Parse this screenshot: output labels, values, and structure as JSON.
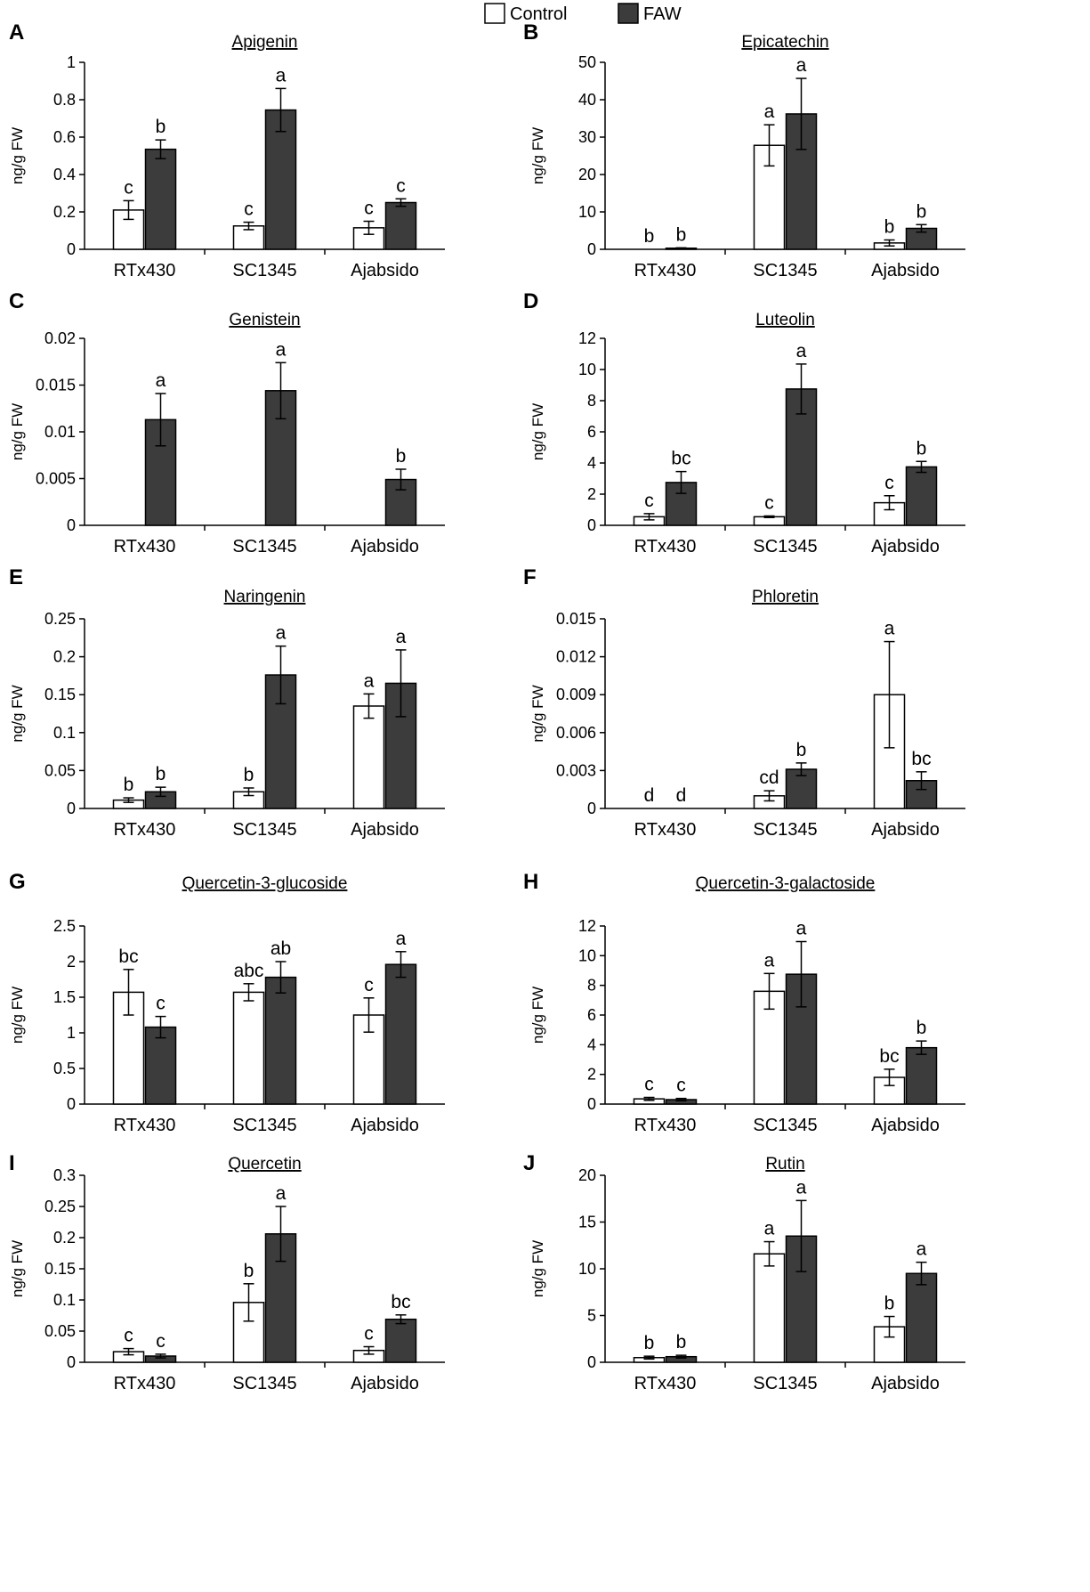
{
  "legend": {
    "control": {
      "label": "Control",
      "color": "#ffffff"
    },
    "faw": {
      "label": "FAW",
      "color": "#3c3c3c"
    }
  },
  "chart_data": [
    {
      "type": "bar",
      "panel": "A",
      "title": "Apigenin",
      "ylabel": "ng/g FW",
      "categories": [
        "RTx430",
        "SC1345",
        "Ajabsido"
      ],
      "ylim": [
        0,
        1
      ],
      "yticks": [
        0,
        0.2,
        0.4,
        0.6,
        0.8,
        1
      ],
      "yticklabels": [
        "0",
        "0.2",
        "0.4",
        "0.6",
        "0.8",
        "1"
      ],
      "series": [
        {
          "name": "Control",
          "values": [
            0.21,
            0.125,
            0.115
          ],
          "errors": [
            0.05,
            0.02,
            0.035
          ],
          "labels": [
            "c",
            "c",
            "c"
          ]
        },
        {
          "name": "FAW",
          "values": [
            0.535,
            0.745,
            0.25
          ],
          "errors": [
            0.05,
            0.115,
            0.02
          ],
          "labels": [
            "b",
            "a",
            "c"
          ]
        }
      ]
    },
    {
      "type": "bar",
      "panel": "B",
      "title": "Epicatechin",
      "ylabel": "ng/g FW",
      "categories": [
        "RTx430",
        "SC1345",
        "Ajabsido"
      ],
      "ylim": [
        0,
        50
      ],
      "yticks": [
        0,
        10,
        20,
        30,
        40,
        50
      ],
      "yticklabels": [
        "0",
        "10",
        "20",
        "30",
        "40",
        "50"
      ],
      "series": [
        {
          "name": "Control",
          "values": [
            0,
            27.8,
            1.7
          ],
          "errors": [
            0,
            5.5,
            0.8
          ],
          "labels": [
            "b",
            "a",
            "b"
          ]
        },
        {
          "name": "FAW",
          "values": [
            0.3,
            36.2,
            5.6
          ],
          "errors": [
            0.1,
            9.5,
            1.0
          ],
          "labels": [
            "b",
            "a",
            "b"
          ]
        }
      ]
    },
    {
      "type": "bar",
      "panel": "C",
      "title": "Genistein",
      "ylabel": "ng/g FW",
      "categories": [
        "RTx430",
        "SC1345",
        "Ajabsido"
      ],
      "ylim": [
        0,
        0.02
      ],
      "yticks": [
        0,
        0.005,
        0.01,
        0.015,
        0.02
      ],
      "yticklabels": [
        "0",
        "0.005",
        "0.01",
        "0.015",
        "0.02"
      ],
      "series": [
        {
          "name": "Control",
          "values": [
            0,
            0,
            0
          ],
          "errors": [
            0,
            0,
            0
          ],
          "labels": [
            "",
            "",
            ""
          ]
        },
        {
          "name": "FAW",
          "values": [
            0.0113,
            0.0144,
            0.0049
          ],
          "errors": [
            0.0028,
            0.003,
            0.0011
          ],
          "labels": [
            "a",
            "a",
            "b"
          ]
        }
      ]
    },
    {
      "type": "bar",
      "panel": "D",
      "title": "Luteolin",
      "ylabel": "ng/g FW",
      "categories": [
        "RTx430",
        "SC1345",
        "Ajabsido"
      ],
      "ylim": [
        0,
        12
      ],
      "yticks": [
        0,
        2,
        4,
        6,
        8,
        10,
        12
      ],
      "yticklabels": [
        "0",
        "2",
        "4",
        "6",
        "8",
        "10",
        "12"
      ],
      "series": [
        {
          "name": "Control",
          "values": [
            0.55,
            0.55,
            1.45
          ],
          "errors": [
            0.2,
            0.05,
            0.45
          ],
          "labels": [
            "c",
            "c",
            "c"
          ]
        },
        {
          "name": "FAW",
          "values": [
            2.75,
            8.75,
            3.75
          ],
          "errors": [
            0.7,
            1.6,
            0.35
          ],
          "labels": [
            "bc",
            "a",
            "b"
          ]
        }
      ]
    },
    {
      "type": "bar",
      "panel": "E",
      "title": "Naringenin",
      "ylabel": "ng/g FW",
      "categories": [
        "RTx430",
        "SC1345",
        "Ajabsido"
      ],
      "ylim": [
        0,
        0.25
      ],
      "yticks": [
        0,
        0.05,
        0.1,
        0.15,
        0.2,
        0.25
      ],
      "yticklabels": [
        "0",
        "0.05",
        "0.1",
        "0.15",
        "0.2",
        "0.25"
      ],
      "series": [
        {
          "name": "Control",
          "values": [
            0.011,
            0.022,
            0.135
          ],
          "errors": [
            0.003,
            0.005,
            0.016
          ],
          "labels": [
            "b",
            "b",
            "a"
          ]
        },
        {
          "name": "FAW",
          "values": [
            0.022,
            0.176,
            0.165
          ],
          "errors": [
            0.006,
            0.038,
            0.044
          ],
          "labels": [
            "b",
            "a",
            "a"
          ]
        }
      ]
    },
    {
      "type": "bar",
      "panel": "F",
      "title": "Phloretin",
      "ylabel": "ng/g FW",
      "categories": [
        "RTx430",
        "SC1345",
        "Ajabsido"
      ],
      "ylim": [
        0,
        0.015
      ],
      "yticks": [
        0,
        0.003,
        0.006,
        0.009,
        0.012,
        0.015
      ],
      "yticklabels": [
        "0",
        "0.003",
        "0.006",
        "0.009",
        "0.012",
        "0.015"
      ],
      "series": [
        {
          "name": "Control",
          "values": [
            0,
            0.001,
            0.009
          ],
          "errors": [
            0,
            0.0004,
            0.0042
          ],
          "labels": [
            "d",
            "cd",
            "a"
          ]
        },
        {
          "name": "FAW",
          "values": [
            0,
            0.0031,
            0.0022
          ],
          "errors": [
            0,
            0.0005,
            0.0007
          ],
          "labels": [
            "d",
            "b",
            "bc"
          ]
        }
      ]
    },
    {
      "type": "bar",
      "panel": "G",
      "title": "Quercetin-3-glucoside",
      "ylabel": "ng/g FW",
      "categories": [
        "RTx430",
        "SC1345",
        "Ajabsido"
      ],
      "ylim": [
        0,
        2.5
      ],
      "yticks": [
        0,
        0.5,
        1,
        1.5,
        2,
        2.5
      ],
      "yticklabels": [
        "0",
        "0.5",
        "1",
        "1.5",
        "2",
        "2.5"
      ],
      "series": [
        {
          "name": "Control",
          "values": [
            1.57,
            1.57,
            1.25
          ],
          "errors": [
            0.32,
            0.12,
            0.24
          ],
          "labels": [
            "bc",
            "abc",
            "c"
          ]
        },
        {
          "name": "FAW",
          "values": [
            1.08,
            1.78,
            1.96
          ],
          "errors": [
            0.15,
            0.22,
            0.18
          ],
          "labels": [
            "c",
            "ab",
            "a"
          ]
        }
      ]
    },
    {
      "type": "bar",
      "panel": "H",
      "title": "Quercetin-3-galactoside",
      "ylabel": "ng/g FW",
      "categories": [
        "RTx430",
        "SC1345",
        "Ajabsido"
      ],
      "ylim": [
        0,
        12
      ],
      "yticks": [
        0,
        2,
        4,
        6,
        8,
        10,
        12
      ],
      "yticklabels": [
        "0",
        "2",
        "4",
        "6",
        "8",
        "10",
        "12"
      ],
      "series": [
        {
          "name": "Control",
          "values": [
            0.35,
            7.6,
            1.8
          ],
          "errors": [
            0.1,
            1.2,
            0.55
          ],
          "labels": [
            "c",
            "a",
            "bc"
          ]
        },
        {
          "name": "FAW",
          "values": [
            0.3,
            8.75,
            3.8
          ],
          "errors": [
            0.08,
            2.2,
            0.45
          ],
          "labels": [
            "c",
            "a",
            "b"
          ]
        }
      ]
    },
    {
      "type": "bar",
      "panel": "I",
      "title": "Quercetin",
      "ylabel": "ng/g FW",
      "categories": [
        "RTx430",
        "SC1345",
        "Ajabsido"
      ],
      "ylim": [
        0,
        0.3
      ],
      "yticks": [
        0,
        0.05,
        0.1,
        0.15,
        0.2,
        0.25,
        0.3
      ],
      "yticklabels": [
        "0",
        "0.05",
        "0.1",
        "0.15",
        "0.2",
        "0.25",
        "0.3"
      ],
      "series": [
        {
          "name": "Control",
          "values": [
            0.017,
            0.096,
            0.019
          ],
          "errors": [
            0.005,
            0.03,
            0.006
          ],
          "labels": [
            "c",
            "b",
            "c"
          ]
        },
        {
          "name": "FAW",
          "values": [
            0.01,
            0.206,
            0.069
          ],
          "errors": [
            0.003,
            0.044,
            0.007
          ],
          "labels": [
            "c",
            "a",
            "bc"
          ]
        }
      ]
    },
    {
      "type": "bar",
      "panel": "J",
      "title": "Rutin",
      "ylabel": "ng/g FW",
      "categories": [
        "RTx430",
        "SC1345",
        "Ajabsido"
      ],
      "ylim": [
        0,
        20
      ],
      "yticks": [
        0,
        5,
        10,
        15,
        20
      ],
      "yticklabels": [
        "0",
        "5",
        "10",
        "15",
        "20"
      ],
      "series": [
        {
          "name": "Control",
          "values": [
            0.5,
            11.6,
            3.8
          ],
          "errors": [
            0.15,
            1.3,
            1.1
          ],
          "labels": [
            "b",
            "a",
            "b"
          ]
        },
        {
          "name": "FAW",
          "values": [
            0.6,
            13.5,
            9.5
          ],
          "errors": [
            0.15,
            3.8,
            1.2
          ],
          "labels": [
            "b",
            "a",
            "a"
          ]
        }
      ]
    }
  ]
}
